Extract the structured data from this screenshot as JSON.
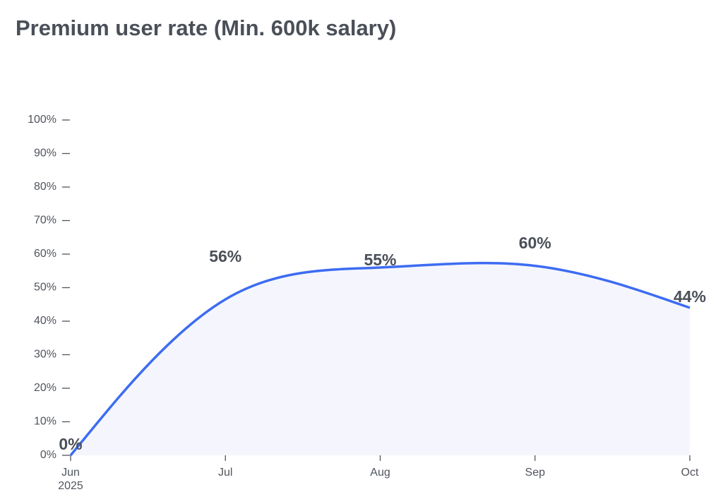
{
  "chart_data": {
    "type": "line",
    "title": "Premium user rate (Min. 600k salary)",
    "categories": [
      "Jun",
      "Jul",
      "Aug",
      "Sep",
      "Oct"
    ],
    "x_sublabels": [
      "2025",
      null,
      null,
      null,
      null
    ],
    "series": [
      {
        "color": "#3d6cf2",
        "values": [
          0,
          56,
          55,
          60,
          44
        ],
        "value_labels": [
          "0%",
          "56%",
          "55%",
          "60%",
          "44%"
        ]
      }
    ],
    "area_color": "#f5f6fd",
    "ylim": [
      0,
      100
    ],
    "yticks": [
      {
        "value": 0,
        "label": "0%"
      },
      {
        "value": 10,
        "label": "10%"
      },
      {
        "value": 20,
        "label": "20%"
      },
      {
        "value": 30,
        "label": "30%"
      },
      {
        "value": 40,
        "label": "40%"
      },
      {
        "value": 50,
        "label": "50%"
      },
      {
        "value": 60,
        "label": "60%"
      },
      {
        "value": 70,
        "label": "70%"
      },
      {
        "value": 80,
        "label": "80%"
      },
      {
        "value": 90,
        "label": "90%"
      },
      {
        "value": 100,
        "label": "100%"
      }
    ],
    "curve": "basis"
  }
}
